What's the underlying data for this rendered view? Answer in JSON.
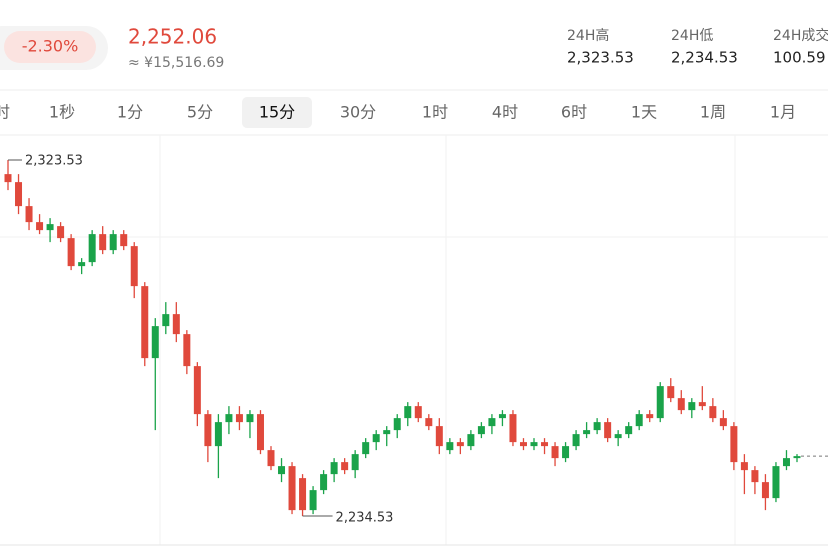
{
  "header": {
    "change": "-2.30%",
    "price": "2,252.06",
    "fiat": "≈ ¥15,516.69",
    "stats": [
      {
        "label": "24H高",
        "value": "2,323.53"
      },
      {
        "label": "24H低",
        "value": "2,234.53"
      },
      {
        "label": "24H成交",
        "value": "100.59"
      }
    ]
  },
  "tabs": [
    "时",
    "1秒",
    "1分",
    "5分",
    "15分",
    "30分",
    "1时",
    "4时",
    "6时",
    "1天",
    "1周",
    "1月"
  ],
  "active_tab": 4,
  "chart_data": {
    "type": "candlestick",
    "up_color": "#1aa34a",
    "down_color": "#e0493c",
    "annotations": [
      "2,323.53",
      "2,234.53"
    ],
    "candles": [
      {
        "open": 2320,
        "high": 2323.53,
        "low": 2316,
        "close": 2318
      },
      {
        "open": 2318,
        "high": 2320,
        "low": 2310,
        "close": 2312
      },
      {
        "open": 2312,
        "high": 2314,
        "low": 2306,
        "close": 2308
      },
      {
        "open": 2308,
        "high": 2310,
        "low": 2305,
        "close": 2306
      },
      {
        "open": 2306,
        "high": 2309,
        "low": 2303,
        "close": 2307.5
      },
      {
        "open": 2307,
        "high": 2308,
        "low": 2303,
        "close": 2304
      },
      {
        "open": 2304,
        "high": 2305,
        "low": 2296,
        "close": 2297
      },
      {
        "open": 2297,
        "high": 2299,
        "low": 2295,
        "close": 2298
      },
      {
        "open": 2298,
        "high": 2306,
        "low": 2297,
        "close": 2305
      },
      {
        "open": 2305,
        "high": 2307,
        "low": 2300,
        "close": 2301
      },
      {
        "open": 2301,
        "high": 2306,
        "low": 2300,
        "close": 2305
      },
      {
        "open": 2305,
        "high": 2306,
        "low": 2301,
        "close": 2302
      },
      {
        "open": 2302,
        "high": 2303,
        "low": 2289,
        "close": 2292
      },
      {
        "open": 2292,
        "high": 2293,
        "low": 2272,
        "close": 2274
      },
      {
        "open": 2274,
        "high": 2284,
        "low": 2256,
        "close": 2282
      },
      {
        "open": 2282,
        "high": 2288,
        "low": 2280,
        "close": 2285
      },
      {
        "open": 2285,
        "high": 2288,
        "low": 2278,
        "close": 2280
      },
      {
        "open": 2280,
        "high": 2281,
        "low": 2270,
        "close": 2272
      },
      {
        "open": 2272,
        "high": 2273,
        "low": 2257,
        "close": 2260
      },
      {
        "open": 2260,
        "high": 2261,
        "low": 2248,
        "close": 2252
      },
      {
        "open": 2252,
        "high": 2260,
        "low": 2244,
        "close": 2258
      },
      {
        "open": 2258,
        "high": 2262,
        "low": 2255,
        "close": 2260
      },
      {
        "open": 2260,
        "high": 2262,
        "low": 2256,
        "close": 2258
      },
      {
        "open": 2258,
        "high": 2261,
        "low": 2254,
        "close": 2260
      },
      {
        "open": 2260,
        "high": 2261,
        "low": 2250,
        "close": 2251
      },
      {
        "open": 2251,
        "high": 2252,
        "low": 2246,
        "close": 2247
      },
      {
        "open": 2245,
        "high": 2249,
        "low": 2243,
        "close": 2247
      },
      {
        "open": 2247,
        "high": 2248,
        "low": 2235,
        "close": 2236
      },
      {
        "open": 2244,
        "high": 2245,
        "low": 2234.53,
        "close": 2236
      },
      {
        "open": 2236,
        "high": 2242,
        "low": 2235,
        "close": 2241
      },
      {
        "open": 2241,
        "high": 2246,
        "low": 2240,
        "close": 2245
      },
      {
        "open": 2245,
        "high": 2249,
        "low": 2243,
        "close": 2248
      },
      {
        "open": 2248,
        "high": 2249,
        "low": 2245,
        "close": 2246
      },
      {
        "open": 2246,
        "high": 2251,
        "low": 2244,
        "close": 2250
      },
      {
        "open": 2250,
        "high": 2254,
        "low": 2249,
        "close": 2253
      },
      {
        "open": 2253,
        "high": 2256,
        "low": 2251,
        "close": 2255
      },
      {
        "open": 2255,
        "high": 2257,
        "low": 2252,
        "close": 2256
      },
      {
        "open": 2256,
        "high": 2260,
        "low": 2254,
        "close": 2259
      },
      {
        "open": 2259,
        "high": 2263,
        "low": 2257,
        "close": 2262
      },
      {
        "open": 2262,
        "high": 2263,
        "low": 2258,
        "close": 2259
      },
      {
        "open": 2259,
        "high": 2260,
        "low": 2256,
        "close": 2257
      },
      {
        "open": 2257,
        "high": 2259,
        "low": 2250,
        "close": 2252
      },
      {
        "open": 2251,
        "high": 2254,
        "low": 2250,
        "close": 2253
      },
      {
        "open": 2253,
        "high": 2254,
        "low": 2250,
        "close": 2252
      },
      {
        "open": 2252,
        "high": 2256,
        "low": 2251,
        "close": 2255
      },
      {
        "open": 2255,
        "high": 2258,
        "low": 2254,
        "close": 2257
      },
      {
        "open": 2257,
        "high": 2260,
        "low": 2255,
        "close": 2259
      },
      {
        "open": 2259,
        "high": 2261,
        "low": 2257,
        "close": 2260
      },
      {
        "open": 2260,
        "high": 2261,
        "low": 2252,
        "close": 2253
      },
      {
        "open": 2253,
        "high": 2254,
        "low": 2251,
        "close": 2252
      },
      {
        "open": 2252,
        "high": 2254,
        "low": 2251,
        "close": 2253
      },
      {
        "open": 2253,
        "high": 2254,
        "low": 2250,
        "close": 2252
      },
      {
        "open": 2252,
        "high": 2253,
        "low": 2247,
        "close": 2249
      },
      {
        "open": 2249,
        "high": 2253,
        "low": 2248,
        "close": 2252
      },
      {
        "open": 2252,
        "high": 2256,
        "low": 2251,
        "close": 2255
      },
      {
        "open": 2255,
        "high": 2258,
        "low": 2254,
        "close": 2256
      },
      {
        "open": 2256,
        "high": 2259,
        "low": 2255,
        "close": 2258
      },
      {
        "open": 2258,
        "high": 2259,
        "low": 2253,
        "close": 2254
      },
      {
        "open": 2254,
        "high": 2256,
        "low": 2252,
        "close": 2255
      },
      {
        "open": 2255,
        "high": 2258,
        "low": 2254,
        "close": 2257
      },
      {
        "open": 2257,
        "high": 2261,
        "low": 2256,
        "close": 2260
      },
      {
        "open": 2260,
        "high": 2261,
        "low": 2258,
        "close": 2259
      },
      {
        "open": 2259,
        "high": 2268,
        "low": 2258,
        "close": 2267
      },
      {
        "open": 2267,
        "high": 2269,
        "low": 2263,
        "close": 2264
      },
      {
        "open": 2264,
        "high": 2266,
        "low": 2260,
        "close": 2261
      },
      {
        "open": 2261,
        "high": 2264,
        "low": 2259,
        "close": 2263
      },
      {
        "open": 2263,
        "high": 2267,
        "low": 2261,
        "close": 2262
      },
      {
        "open": 2262,
        "high": 2264,
        "low": 2258,
        "close": 2259
      },
      {
        "open": 2259,
        "high": 2261,
        "low": 2256,
        "close": 2257
      },
      {
        "open": 2257,
        "high": 2258,
        "low": 2246,
        "close": 2248
      },
      {
        "open": 2248,
        "high": 2250,
        "low": 2240,
        "close": 2246
      },
      {
        "open": 2246,
        "high": 2247,
        "low": 2240,
        "close": 2243
      },
      {
        "open": 2243,
        "high": 2245,
        "low": 2236,
        "close": 2239
      },
      {
        "open": 2239,
        "high": 2248,
        "low": 2238,
        "close": 2247
      },
      {
        "open": 2247,
        "high": 2251,
        "low": 2246,
        "close": 2249
      },
      {
        "open": 2249,
        "high": 2250,
        "low": 2248,
        "close": 2249.5
      }
    ]
  }
}
